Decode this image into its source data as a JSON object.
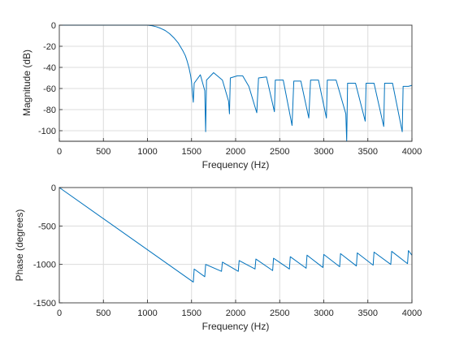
{
  "chart_data": [
    {
      "type": "line",
      "title": "",
      "xlabel": "Frequency (Hz)",
      "ylabel": "Magnitude (dB)",
      "xlim": [
        0,
        4000
      ],
      "ylim": [
        -110,
        0
      ],
      "xticks": [
        0,
        500,
        1000,
        1500,
        2000,
        2500,
        3000,
        3500,
        4000
      ],
      "yticks": [
        0,
        -20,
        -40,
        -60,
        -80,
        -100
      ],
      "grid": true,
      "color": "#0072bd",
      "x": [
        0,
        200,
        400,
        600,
        800,
        1000,
        1050,
        1100,
        1150,
        1200,
        1250,
        1300,
        1350,
        1400,
        1430,
        1450,
        1470,
        1490,
        1500,
        1510,
        1520,
        1530,
        1600,
        1650,
        1660,
        1670,
        1750,
        1850,
        1920,
        1930,
        1940,
        2020,
        2080,
        2150,
        2240,
        2260,
        2350,
        2440,
        2450,
        2540,
        2640,
        2660,
        2740,
        2830,
        2850,
        2940,
        3030,
        3040,
        3140,
        3250,
        3260,
        3270,
        3360,
        3470,
        3480,
        3570,
        3680,
        3690,
        3780,
        3890,
        3900,
        3960,
        4000
      ],
      "values": [
        0,
        0,
        0,
        0,
        0,
        0,
        -0.5,
        -1.5,
        -3,
        -5,
        -8,
        -12,
        -17,
        -24,
        -29,
        -34,
        -40,
        -48,
        -54,
        -64,
        -73,
        -55,
        -47,
        -62,
        -101,
        -52,
        -45,
        -52,
        -72,
        -84,
        -50,
        -48,
        -48,
        -58,
        -83,
        -50,
        -49,
        -82,
        -52,
        -52,
        -95,
        -53,
        -53,
        -88,
        -52,
        -52,
        -88,
        -52,
        -52,
        -84,
        -110,
        -55,
        -55,
        -91,
        -55,
        -55,
        -96,
        -55,
        -55,
        -101,
        -58,
        -58,
        -57
      ]
    },
    {
      "type": "line",
      "title": "",
      "xlabel": "Frequency (Hz)",
      "ylabel": "Phase (degrees)",
      "xlim": [
        0,
        4000
      ],
      "ylim": [
        -1500,
        0
      ],
      "xticks": [
        0,
        500,
        1000,
        1500,
        2000,
        2500,
        3000,
        3500,
        4000
      ],
      "yticks": [
        0,
        -500,
        -1000,
        -1500
      ],
      "grid": true,
      "color": "#0072bd",
      "x": [
        0,
        1520,
        1530,
        1650,
        1660,
        1840,
        1850,
        2030,
        2040,
        2220,
        2230,
        2420,
        2430,
        2610,
        2620,
        2800,
        2810,
        2990,
        3000,
        3180,
        3190,
        3370,
        3380,
        3560,
        3570,
        3760,
        3770,
        3950,
        3960,
        4000
      ],
      "values": [
        0,
        -1230,
        -1060,
        -1160,
        -1000,
        -1090,
        -970,
        -1090,
        -950,
        -1060,
        -930,
        -1080,
        -920,
        -1060,
        -900,
        -1050,
        -880,
        -1040,
        -870,
        -1030,
        -860,
        -1020,
        -850,
        -1010,
        -840,
        -1000,
        -830,
        -990,
        -820,
        -880
      ]
    }
  ]
}
